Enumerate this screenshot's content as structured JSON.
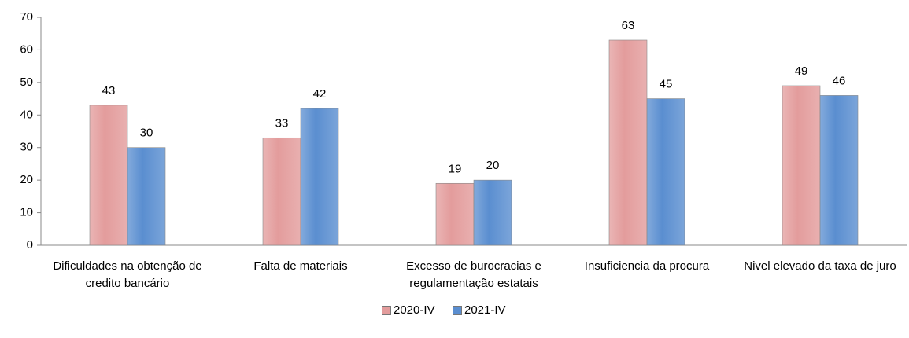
{
  "chart_data": {
    "type": "bar",
    "categories": [
      "Dificuldades na obtenção de credito bancário",
      "Falta de materiais",
      "Excesso de burocracias e regulamentação estatais",
      "Insuficiencia da procura",
      "Nivel elevado da taxa de juro"
    ],
    "series": [
      {
        "name": "2020-IV",
        "color": "#e39c9c",
        "values": [
          43,
          33,
          19,
          63,
          49
        ]
      },
      {
        "name": "2021-IV",
        "color": "#5a8ed0",
        "values": [
          30,
          42,
          20,
          45,
          46
        ]
      }
    ],
    "ylim": [
      0,
      70
    ],
    "yticks": [
      0,
      10,
      20,
      30,
      40,
      50,
      60,
      70
    ],
    "grid": false,
    "legend": "bottom"
  }
}
